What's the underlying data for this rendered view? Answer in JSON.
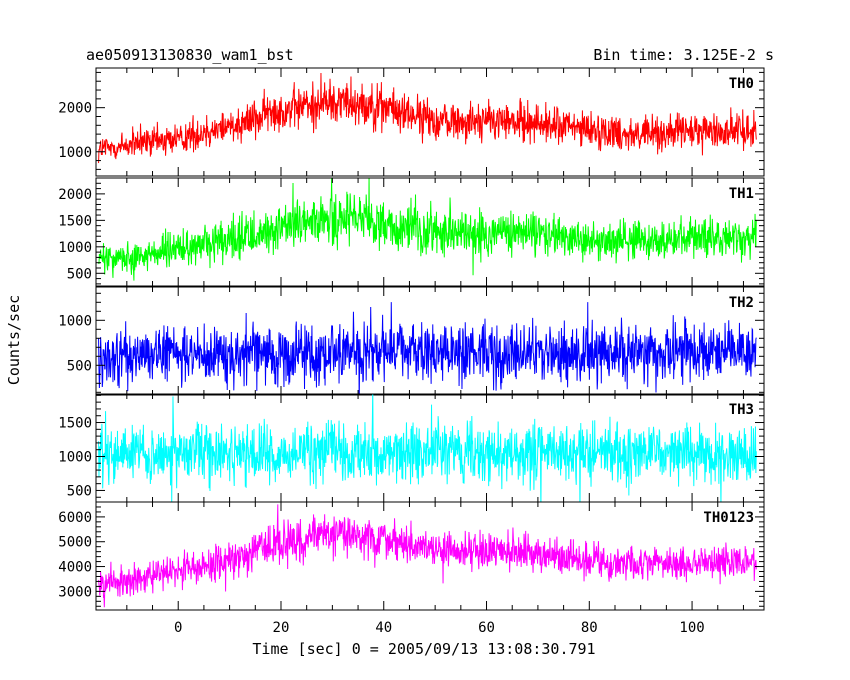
{
  "chart_data": {
    "type": "line",
    "title": "ae050913130830_wam1_bst",
    "subtitle": "Bin time: 3.125E-2 s",
    "xlabel": "Time [sec] 0 = 2005/09/13 13:08:30.791",
    "ylabel": "Counts/sec",
    "xlim": [
      -16,
      114
    ],
    "x_ticks": [
      0,
      20,
      40,
      60,
      80,
      100
    ],
    "x_range_data": [
      -15.5,
      112.5
    ],
    "panels": [
      {
        "name": "TH0",
        "color": "#ff0000",
        "ylim": [
          450,
          2900
        ],
        "y_ticks": [
          1000,
          2000
        ],
        "envelope": {
          "x": [
            -15.5,
            0,
            10,
            20,
            30,
            35,
            40,
            50,
            60,
            70,
            80,
            90,
            100,
            112.5
          ],
          "center": [
            1050,
            1300,
            1600,
            1950,
            2150,
            2150,
            2000,
            1700,
            1700,
            1650,
            1500,
            1400,
            1450,
            1500
          ],
          "spread": [
            500,
            550,
            600,
            700,
            750,
            750,
            700,
            650,
            650,
            650,
            600,
            600,
            600,
            600
          ]
        }
      },
      {
        "name": "TH1",
        "color": "#00ff00",
        "ylim": [
          260,
          2300
        ],
        "y_ticks": [
          500,
          1000,
          1500,
          2000
        ],
        "envelope": {
          "x": [
            -15.5,
            0,
            10,
            20,
            30,
            35,
            40,
            50,
            60,
            70,
            80,
            90,
            100,
            112.5
          ],
          "center": [
            750,
            950,
            1100,
            1350,
            1500,
            1500,
            1400,
            1250,
            1250,
            1250,
            1150,
            1100,
            1150,
            1150
          ],
          "spread": [
            450,
            500,
            550,
            650,
            700,
            700,
            650,
            600,
            600,
            600,
            550,
            550,
            550,
            550
          ]
        }
      },
      {
        "name": "TH2",
        "color": "#0000ff",
        "ylim": [
          170,
          1370
        ],
        "y_ticks": [
          500,
          1000
        ],
        "envelope": {
          "x": [
            -15.5,
            20,
            40,
            60,
            80,
            100,
            112.5
          ],
          "center": [
            600,
            620,
            650,
            640,
            630,
            640,
            640
          ],
          "spread": [
            450,
            470,
            480,
            480,
            470,
            480,
            480
          ]
        }
      },
      {
        "name": "TH3",
        "color": "#00ffff",
        "ylim": [
          330,
          1920
        ],
        "y_ticks": [
          500,
          1000,
          1500
        ],
        "envelope": {
          "x": [
            -15.5,
            20,
            40,
            60,
            80,
            100,
            112.5
          ],
          "center": [
            1030,
            1050,
            1060,
            1050,
            1040,
            1050,
            1050
          ],
          "spread": [
            620,
            640,
            650,
            650,
            640,
            650,
            650
          ]
        }
      },
      {
        "name": "TH0123",
        "color": "#ff00ff",
        "ylim": [
          2250,
          6600
        ],
        "y_ticks": [
          3000,
          4000,
          5000,
          6000
        ],
        "envelope": {
          "x": [
            -15.5,
            0,
            10,
            20,
            30,
            35,
            40,
            50,
            60,
            70,
            80,
            90,
            100,
            112.5
          ],
          "center": [
            3300,
            3800,
            4300,
            4900,
            5300,
            5300,
            5100,
            4700,
            4600,
            4500,
            4250,
            4100,
            4150,
            4150
          ],
          "spread": [
            900,
            1000,
            1100,
            1200,
            1250,
            1250,
            1200,
            1100,
            1100,
            1100,
            1000,
            1000,
            1000,
            1000
          ]
        }
      }
    ]
  }
}
